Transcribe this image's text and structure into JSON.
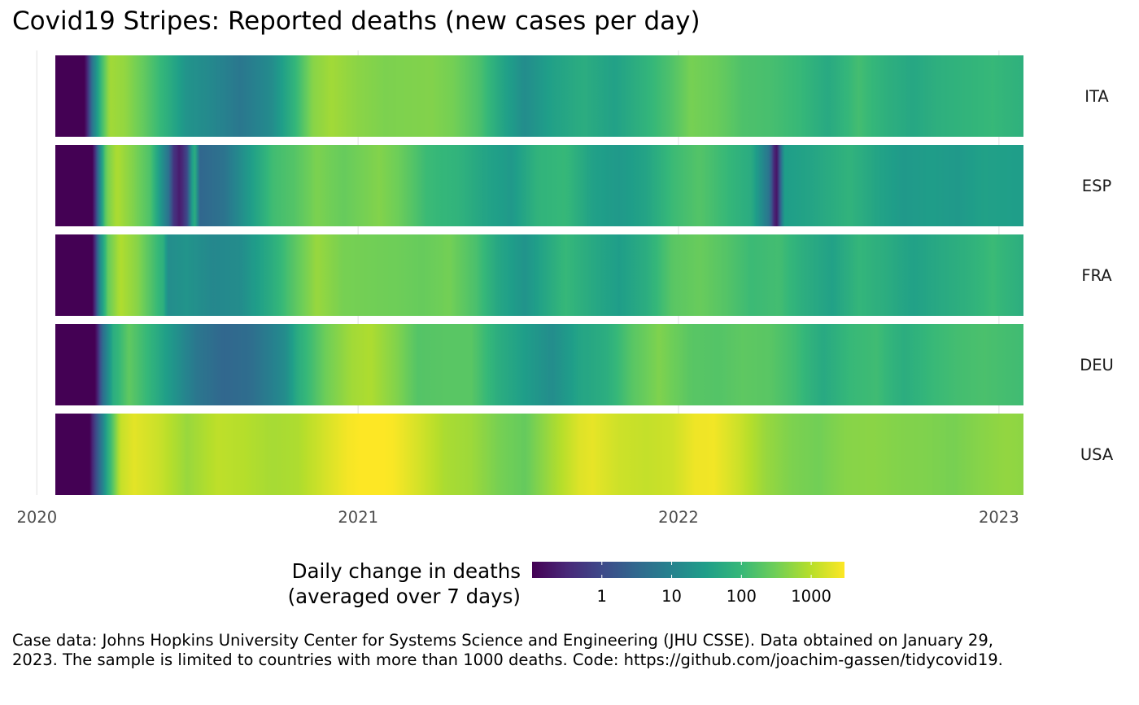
{
  "title": "Covid19 Stripes: Reported deaths (new cases per day)",
  "caption": "Case data: Johns Hopkins University Center for Systems Science and Engineering (JHU CSSE). Data obtained on January 29, 2023. The sample is limited to countries with more than 1000 deaths. Code: https://github.com/joachim-gassen/tidycovid19.",
  "colors": {
    "viridis": [
      "#440154",
      "#482878",
      "#3e4989",
      "#31688e",
      "#26828e",
      "#1f9e89",
      "#35b779",
      "#6ece58",
      "#b5de2b",
      "#fde725"
    ]
  },
  "chart_data": {
    "type": "heatmap",
    "title": "Covid19 Stripes: Reported deaths (new cases per day)",
    "x_axis": {
      "label": "",
      "range": [
        "2020-01-22",
        "2023-01-29"
      ],
      "ticks": [
        "2020",
        "2021",
        "2022",
        "2023"
      ]
    },
    "y_axis": {
      "label": "",
      "categories": [
        "ITA",
        "ESP",
        "FRA",
        "DEU",
        "USA"
      ]
    },
    "color_scale": {
      "name": "viridis",
      "scale": "log10",
      "title": "Daily change in deaths\n(averaged over 7 days)",
      "ticks": [
        "1",
        "10",
        "100",
        "1000"
      ],
      "range": [
        0.1,
        3000
      ]
    },
    "legend_position": "bottom",
    "value_unit": "deaths per day (7-day average)",
    "series": [
      {
        "name": "ITA",
        "keypoints": [
          [
            "2020-01-22",
            0
          ],
          [
            "2020-02-25",
            0
          ],
          [
            "2020-03-04",
            5
          ],
          [
            "2020-03-14",
            100
          ],
          [
            "2020-03-24",
            700
          ],
          [
            "2020-04-10",
            550
          ],
          [
            "2020-05-01",
            250
          ],
          [
            "2020-05-25",
            80
          ],
          [
            "2020-06-20",
            20
          ],
          [
            "2020-07-20",
            12
          ],
          [
            "2020-08-20",
            6
          ],
          [
            "2020-09-25",
            15
          ],
          [
            "2020-10-20",
            80
          ],
          [
            "2020-11-10",
            450
          ],
          [
            "2020-12-01",
            700
          ],
          [
            "2021-01-01",
            480
          ],
          [
            "2021-02-01",
            380
          ],
          [
            "2021-03-25",
            420
          ],
          [
            "2021-04-20",
            330
          ],
          [
            "2021-05-20",
            150
          ],
          [
            "2021-06-15",
            40
          ],
          [
            "2021-07-10",
            15
          ],
          [
            "2021-08-10",
            35
          ],
          [
            "2021-09-15",
            60
          ],
          [
            "2021-10-20",
            35
          ],
          [
            "2021-11-25",
            80
          ],
          [
            "2021-12-25",
            170
          ],
          [
            "2022-01-15",
            350
          ],
          [
            "2022-02-15",
            270
          ],
          [
            "2022-03-15",
            160
          ],
          [
            "2022-04-15",
            140
          ],
          [
            "2022-05-20",
            100
          ],
          [
            "2022-06-20",
            50
          ],
          [
            "2022-07-25",
            130
          ],
          [
            "2022-08-25",
            70
          ],
          [
            "2022-09-25",
            45
          ],
          [
            "2022-10-20",
            65
          ],
          [
            "2022-11-20",
            80
          ],
          [
            "2022-12-25",
            100
          ],
          [
            "2023-01-29",
            70
          ]
        ]
      },
      {
        "name": "ESP",
        "keypoints": [
          [
            "2020-01-22",
            0
          ],
          [
            "2020-03-05",
            0
          ],
          [
            "2020-03-12",
            8
          ],
          [
            "2020-03-20",
            300
          ],
          [
            "2020-04-01",
            850
          ],
          [
            "2020-04-20",
            400
          ],
          [
            "2020-05-10",
            150
          ],
          [
            "2020-05-30",
            5
          ],
          [
            "2020-06-05",
            0.5
          ],
          [
            "2020-06-12",
            0.2
          ],
          [
            "2020-06-20",
            1
          ],
          [
            "2020-06-28",
            100
          ],
          [
            "2020-07-05",
            3
          ],
          [
            "2020-08-01",
            5
          ],
          [
            "2020-08-25",
            20
          ],
          [
            "2020-09-25",
            120
          ],
          [
            "2020-10-20",
            180
          ],
          [
            "2020-11-15",
            380
          ],
          [
            "2020-12-15",
            260
          ],
          [
            "2021-01-25",
            420
          ],
          [
            "2021-02-15",
            300
          ],
          [
            "2021-03-20",
            110
          ],
          [
            "2021-04-25",
            80
          ],
          [
            "2021-05-25",
            40
          ],
          [
            "2021-06-25",
            25
          ],
          [
            "2021-07-25",
            80
          ],
          [
            "2021-08-25",
            100
          ],
          [
            "2021-09-25",
            35
          ],
          [
            "2021-10-25",
            25
          ],
          [
            "2021-11-25",
            40
          ],
          [
            "2021-12-25",
            110
          ],
          [
            "2022-01-25",
            180
          ],
          [
            "2022-02-25",
            100
          ],
          [
            "2022-03-25",
            55
          ],
          [
            "2022-04-15",
            5
          ],
          [
            "2022-04-22",
            0.1
          ],
          [
            "2022-05-01",
            30
          ],
          [
            "2022-06-01",
            40
          ],
          [
            "2022-07-15",
            80
          ],
          [
            "2022-08-15",
            40
          ],
          [
            "2022-09-15",
            25
          ],
          [
            "2022-10-15",
            30
          ],
          [
            "2022-11-15",
            25
          ],
          [
            "2022-12-15",
            35
          ],
          [
            "2023-01-29",
            30
          ]
        ]
      },
      {
        "name": "FRA",
        "keypoints": [
          [
            "2020-01-22",
            0
          ],
          [
            "2020-03-05",
            0
          ],
          [
            "2020-03-12",
            10
          ],
          [
            "2020-03-22",
            250
          ],
          [
            "2020-04-05",
            900
          ],
          [
            "2020-04-25",
            450
          ],
          [
            "2020-05-15",
            120
          ],
          [
            "2020-05-26",
            60
          ],
          [
            "2020-05-28",
            15
          ],
          [
            "2020-06-20",
            20
          ],
          [
            "2020-07-20",
            12
          ],
          [
            "2020-08-20",
            15
          ],
          [
            "2020-09-25",
            60
          ],
          [
            "2020-10-25",
            250
          ],
          [
            "2020-11-15",
            600
          ],
          [
            "2020-12-15",
            350
          ],
          [
            "2021-01-15",
            320
          ],
          [
            "2021-02-15",
            300
          ],
          [
            "2021-03-15",
            260
          ],
          [
            "2021-04-15",
            330
          ],
          [
            "2021-05-15",
            150
          ],
          [
            "2021-06-10",
            45
          ],
          [
            "2021-07-10",
            20
          ],
          [
            "2021-08-25",
            100
          ],
          [
            "2021-09-25",
            50
          ],
          [
            "2021-10-25",
            30
          ],
          [
            "2021-11-25",
            60
          ],
          [
            "2021-12-25",
            200
          ],
          [
            "2022-01-25",
            270
          ],
          [
            "2022-02-25",
            180
          ],
          [
            "2022-03-25",
            110
          ],
          [
            "2022-04-25",
            130
          ],
          [
            "2022-05-25",
            60
          ],
          [
            "2022-06-25",
            35
          ],
          [
            "2022-07-25",
            90
          ],
          [
            "2022-08-25",
            60
          ],
          [
            "2022-09-25",
            35
          ],
          [
            "2022-10-25",
            50
          ],
          [
            "2022-11-25",
            70
          ],
          [
            "2022-12-25",
            110
          ],
          [
            "2023-01-29",
            60
          ]
        ]
      },
      {
        "name": "DEU",
        "keypoints": [
          [
            "2020-01-22",
            0
          ],
          [
            "2020-03-08",
            0
          ],
          [
            "2020-03-15",
            3
          ],
          [
            "2020-03-28",
            60
          ],
          [
            "2020-04-15",
            230
          ],
          [
            "2020-05-05",
            100
          ],
          [
            "2020-06-01",
            25
          ],
          [
            "2020-07-01",
            6
          ],
          [
            "2020-08-01",
            3
          ],
          [
            "2020-09-01",
            4
          ],
          [
            "2020-10-10",
            15
          ],
          [
            "2020-10-25",
            60
          ],
          [
            "2020-11-25",
            300
          ],
          [
            "2020-12-25",
            700
          ],
          [
            "2021-01-15",
            850
          ],
          [
            "2021-02-15",
            400
          ],
          [
            "2021-03-10",
            180
          ],
          [
            "2021-04-10",
            200
          ],
          [
            "2021-05-10",
            200
          ],
          [
            "2021-06-10",
            60
          ],
          [
            "2021-07-10",
            30
          ],
          [
            "2021-08-10",
            15
          ],
          [
            "2021-09-10",
            40
          ],
          [
            "2021-10-10",
            60
          ],
          [
            "2021-11-10",
            200
          ],
          [
            "2021-12-10",
            400
          ],
          [
            "2022-01-15",
            200
          ],
          [
            "2022-02-15",
            180
          ],
          [
            "2022-03-15",
            220
          ],
          [
            "2022-04-15",
            200
          ],
          [
            "2022-05-15",
            120
          ],
          [
            "2022-06-15",
            50
          ],
          [
            "2022-07-15",
            100
          ],
          [
            "2022-08-15",
            120
          ],
          [
            "2022-09-15",
            60
          ],
          [
            "2022-10-15",
            100
          ],
          [
            "2022-11-15",
            130
          ],
          [
            "2022-12-15",
            150
          ],
          [
            "2023-01-29",
            120
          ]
        ]
      },
      {
        "name": "USA",
        "keypoints": [
          [
            "2020-01-22",
            0
          ],
          [
            "2020-03-01",
            0
          ],
          [
            "2020-03-08",
            1
          ],
          [
            "2020-03-22",
            60
          ],
          [
            "2020-04-05",
            1200
          ],
          [
            "2020-04-20",
            2000
          ],
          [
            "2020-05-20",
            1300
          ],
          [
            "2020-06-20",
            600
          ],
          [
            "2020-07-25",
            1100
          ],
          [
            "2020-08-25",
            950
          ],
          [
            "2020-09-25",
            750
          ],
          [
            "2020-10-25",
            850
          ],
          [
            "2020-11-25",
            1600
          ],
          [
            "2020-12-20",
            2600
          ],
          [
            "2021-01-15",
            3300
          ],
          [
            "2021-02-10",
            2800
          ],
          [
            "2021-03-10",
            1600
          ],
          [
            "2021-04-10",
            800
          ],
          [
            "2021-05-10",
            650
          ],
          [
            "2021-06-10",
            350
          ],
          [
            "2021-07-10",
            250
          ],
          [
            "2021-08-10",
            700
          ],
          [
            "2021-09-10",
            1800
          ],
          [
            "2021-09-25",
            2100
          ],
          [
            "2021-10-25",
            1400
          ],
          [
            "2021-11-25",
            1200
          ],
          [
            "2021-12-25",
            1400
          ],
          [
            "2022-01-20",
            2400
          ],
          [
            "2022-02-10",
            2500
          ],
          [
            "2022-03-10",
            1400
          ],
          [
            "2022-04-10",
            600
          ],
          [
            "2022-05-10",
            380
          ],
          [
            "2022-06-10",
            320
          ],
          [
            "2022-07-10",
            450
          ],
          [
            "2022-08-10",
            480
          ],
          [
            "2022-09-10",
            420
          ],
          [
            "2022-10-10",
            400
          ],
          [
            "2022-11-10",
            350
          ],
          [
            "2022-12-10",
            450
          ],
          [
            "2023-01-10",
            550
          ],
          [
            "2023-01-29",
            500
          ]
        ]
      }
    ]
  }
}
